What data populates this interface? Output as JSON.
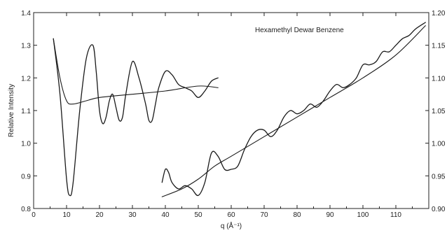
{
  "chart_data": {
    "type": "line",
    "title": "",
    "annotation": "Hexamethyl Dewar Benzene",
    "xlabel": "q (Å⁻¹)",
    "ylabel": "Relative Intensity",
    "xlim": [
      0,
      120
    ],
    "ylim_left": [
      0.8,
      1.4
    ],
    "ylim_right": [
      0.9,
      1.2
    ],
    "x_ticks": [
      0,
      10,
      20,
      30,
      40,
      50,
      60,
      70,
      80,
      90,
      100,
      110
    ],
    "x_tick_labels": [
      "0",
      "10",
      "20",
      "30",
      "40",
      "50",
      "60",
      "70",
      "80",
      "90",
      "100",
      "110"
    ],
    "y_ticks_left": [
      0.8,
      0.9,
      1.0,
      1.1,
      1.2,
      1.3,
      1.4
    ],
    "y_tick_labels_left": [
      "0.8",
      "0.9",
      "1.0",
      "1.1",
      "1.2",
      "1.3",
      "1.4"
    ],
    "y_ticks_right": [
      0.9,
      0.95,
      1.0,
      1.05,
      1.1,
      1.15,
      1.2
    ],
    "y_tick_labels_right": [
      "0.90",
      "0.95",
      "1.00",
      "1.05",
      "1.10",
      "1.15",
      "1.20"
    ],
    "grid": false,
    "legend": "none",
    "series": [
      {
        "axis": "left",
        "style": "oscillating",
        "x": [
          6,
          8,
          10,
          11,
          12,
          14,
          16,
          18,
          19,
          20,
          21,
          22,
          23,
          24,
          25,
          26,
          27,
          28,
          30,
          32,
          34,
          35,
          36,
          37,
          38,
          40,
          42,
          44,
          46,
          48,
          50,
          52,
          54,
          56
        ],
        "y": [
          1.32,
          1.15,
          0.89,
          0.84,
          0.88,
          1.1,
          1.26,
          1.3,
          1.22,
          1.1,
          1.06,
          1.08,
          1.13,
          1.15,
          1.11,
          1.07,
          1.08,
          1.15,
          1.25,
          1.2,
          1.12,
          1.07,
          1.07,
          1.12,
          1.17,
          1.22,
          1.21,
          1.18,
          1.17,
          1.16,
          1.14,
          1.16,
          1.19,
          1.2
        ]
      },
      {
        "axis": "left",
        "style": "smooth",
        "x": [
          6,
          8,
          10,
          12,
          16,
          20,
          30,
          40,
          50,
          56
        ],
        "y": [
          1.32,
          1.2,
          1.13,
          1.12,
          1.13,
          1.14,
          1.15,
          1.16,
          1.175,
          1.17
        ]
      },
      {
        "axis": "right",
        "style": "oscillating",
        "x": [
          39,
          40,
          41,
          42,
          44,
          46,
          48,
          50,
          52,
          54,
          56,
          58,
          60,
          62,
          64,
          66,
          68,
          70,
          72,
          74,
          76,
          78,
          80,
          82,
          84,
          86,
          88,
          90,
          92,
          94,
          96,
          98,
          100,
          102,
          104,
          106,
          108,
          110,
          112,
          114,
          116,
          119
        ],
        "y": [
          0.94,
          0.96,
          0.955,
          0.94,
          0.93,
          0.935,
          0.93,
          0.92,
          0.94,
          0.985,
          0.98,
          0.96,
          0.96,
          0.965,
          0.99,
          1.01,
          1.02,
          1.02,
          1.01,
          1.02,
          1.04,
          1.05,
          1.045,
          1.05,
          1.06,
          1.055,
          1.065,
          1.08,
          1.09,
          1.085,
          1.09,
          1.1,
          1.12,
          1.12,
          1.125,
          1.14,
          1.14,
          1.15,
          1.16,
          1.165,
          1.175,
          1.185
        ]
      },
      {
        "axis": "right",
        "style": "smooth",
        "x": [
          39,
          45,
          50,
          55,
          60,
          70,
          80,
          90,
          100,
          110,
          119
        ],
        "y": [
          0.918,
          0.93,
          0.945,
          0.965,
          0.98,
          1.01,
          1.04,
          1.07,
          1.1,
          1.135,
          1.18
        ]
      }
    ]
  }
}
